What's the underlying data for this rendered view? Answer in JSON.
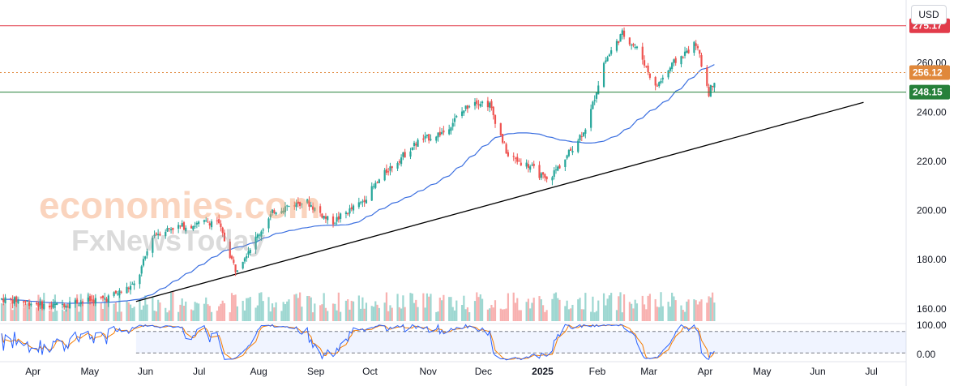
{
  "currency_button": "USD",
  "watermark": {
    "line1": "economies.com",
    "line2": "FxNewsToday"
  },
  "colors": {
    "up": "#26a69a",
    "down": "#ef5350",
    "ma": "#3b6fe0",
    "resistance": "#e23b4a",
    "mid": "#e0883b",
    "support": "#26803a",
    "trend": "#000000",
    "stoch_k": "#2962ff",
    "stoch_d": "#f57c00"
  },
  "chart_data": {
    "type": "candlestick",
    "price_ticks": [
      "260.00",
      "240.00",
      "220.00",
      "200.00",
      "180.00",
      "160.00"
    ],
    "price_tick_values": [
      260,
      240,
      220,
      200,
      180,
      160
    ],
    "ylim": [
      155,
      283
    ],
    "x_labels": [
      "Apr",
      "May",
      "Jun",
      "Jul",
      "Aug",
      "Sep",
      "Oct",
      "Nov",
      "Dec",
      "2025",
      "Feb",
      "Mar",
      "Apr",
      "May",
      "Jun",
      "Jul"
    ],
    "x_label_months": [
      "2024-04",
      "2024-05",
      "2024-06",
      "2024-07",
      "2024-08",
      "2024-09",
      "2024-10",
      "2024-11",
      "2024-12",
      "2025-01",
      "2025-02",
      "2025-03",
      "2025-04",
      "2025-05",
      "2025-06",
      "2025-07"
    ],
    "levels": [
      {
        "value": 275.17,
        "label": "275.17",
        "style": "solid",
        "color": "#e23b4a"
      },
      {
        "value": 256.12,
        "label": "256.12",
        "style": "dotted",
        "color": "#e0883b"
      },
      {
        "value": 248.15,
        "label": "248.15",
        "style": "solid",
        "color": "#26803a"
      }
    ],
    "trendline": {
      "start": [
        "2024-06-01",
        163
      ],
      "end": [
        "2025-07-01",
        244
      ]
    },
    "monthly_close": [
      [
        "2024-03-20",
        164
      ],
      [
        "2024-04-01",
        163
      ],
      [
        "2024-04-15",
        161
      ],
      [
        "2024-05-01",
        163
      ],
      [
        "2024-05-15",
        164
      ],
      [
        "2024-06-01",
        170
      ],
      [
        "2024-06-10",
        190
      ],
      [
        "2024-06-20",
        193
      ],
      [
        "2024-07-01",
        194
      ],
      [
        "2024-07-15",
        196
      ],
      [
        "2024-07-25",
        176
      ],
      [
        "2024-08-01",
        184
      ],
      [
        "2024-08-15",
        200
      ],
      [
        "2024-09-01",
        204
      ],
      [
        "2024-09-15",
        195
      ],
      [
        "2024-10-01",
        203
      ],
      [
        "2024-10-15",
        216
      ],
      [
        "2024-11-01",
        228
      ],
      [
        "2024-11-15",
        232
      ],
      [
        "2024-12-01",
        245
      ],
      [
        "2024-12-10",
        243
      ],
      [
        "2024-12-20",
        222
      ],
      [
        "2025-01-01",
        218
      ],
      [
        "2025-01-10",
        212
      ],
      [
        "2025-01-20",
        221
      ],
      [
        "2025-02-01",
        235
      ],
      [
        "2025-02-10",
        260
      ],
      [
        "2025-02-20",
        272
      ],
      [
        "2025-03-01",
        265
      ],
      [
        "2025-03-10",
        250
      ],
      [
        "2025-03-20",
        260
      ],
      [
        "2025-04-01",
        268
      ],
      [
        "2025-04-08",
        248
      ],
      [
        "2025-04-12",
        255
      ]
    ],
    "stochastic_ticks": [
      "100.00",
      "0.00"
    ],
    "stochastic_tick_values": [
      100,
      0
    ]
  }
}
